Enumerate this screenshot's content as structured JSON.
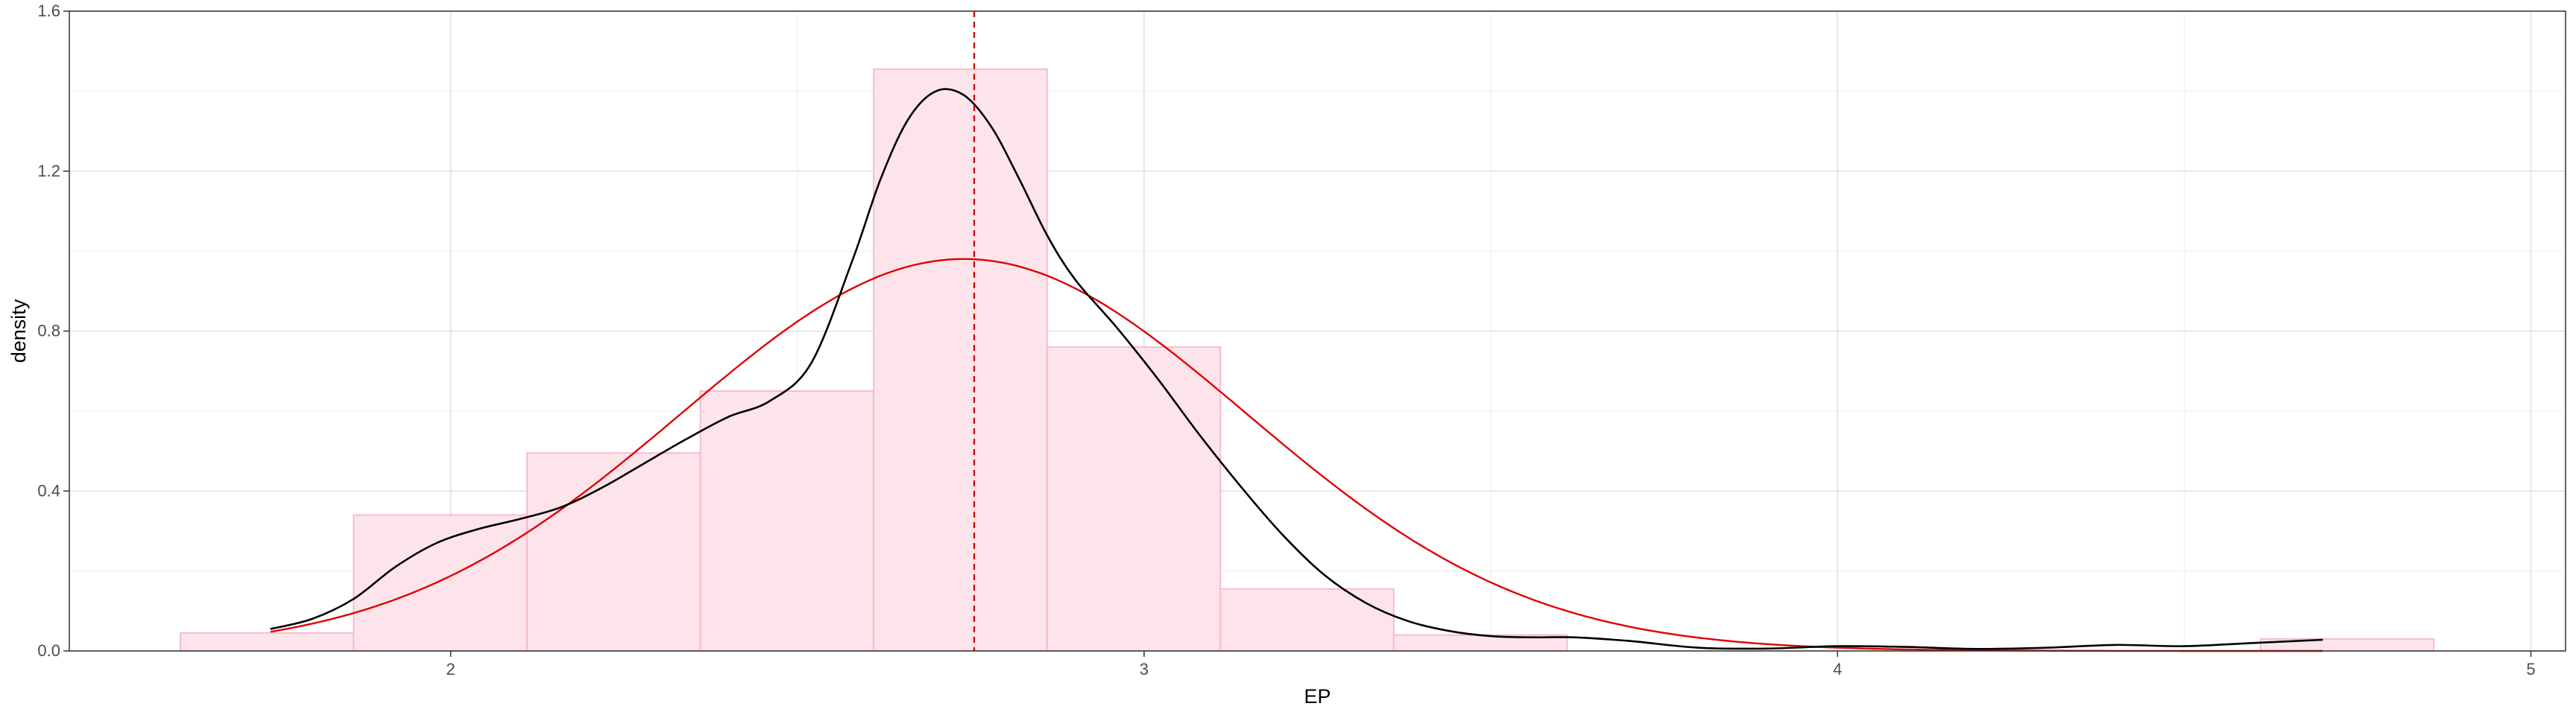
{
  "chart_data": {
    "type": "histogram",
    "xlabel": "EP",
    "ylabel": "density",
    "xlim": [
      1.45,
      5.05
    ],
    "ylim": [
      0,
      1.6
    ],
    "x_ticks": [
      2,
      3,
      4,
      5
    ],
    "x_tick_labels": [
      "2",
      "3",
      "4",
      "5"
    ],
    "y_ticks": [
      0,
      0.4,
      0.8,
      1.2,
      1.6
    ],
    "y_tick_labels": [
      "0.0",
      "0.4",
      "0.8",
      "1.2",
      "1.6"
    ],
    "grid": true,
    "legend": "none",
    "histogram": {
      "bins": [
        {
          "x0": 1.61,
          "x1": 1.86,
          "density": 0.045
        },
        {
          "x0": 1.86,
          "x1": 2.11,
          "density": 0.34
        },
        {
          "x0": 2.11,
          "x1": 2.36,
          "density": 0.495
        },
        {
          "x0": 2.36,
          "x1": 2.61,
          "density": 0.65
        },
        {
          "x0": 2.61,
          "x1": 2.86,
          "density": 1.455
        },
        {
          "x0": 2.86,
          "x1": 3.11,
          "density": 0.76
        },
        {
          "x0": 3.11,
          "x1": 3.36,
          "density": 0.155
        },
        {
          "x0": 3.36,
          "x1": 3.61,
          "density": 0.04
        },
        {
          "x0": 3.61,
          "x1": 3.86,
          "density": 0.0
        },
        {
          "x0": 3.86,
          "x1": 4.11,
          "density": 0.0
        },
        {
          "x0": 4.11,
          "x1": 4.36,
          "density": 0.0
        },
        {
          "x0": 4.36,
          "x1": 4.61,
          "density": 0.0
        },
        {
          "x0": 4.61,
          "x1": 4.86,
          "density": 0.03
        }
      ],
      "fill": "#fde4ea",
      "stroke": "#f5b8c6"
    },
    "kde_curve": {
      "color": "#000000",
      "x": [
        1.74,
        1.8,
        1.86,
        1.92,
        1.98,
        2.04,
        2.1,
        2.16,
        2.22,
        2.28,
        2.34,
        2.4,
        2.46,
        2.52,
        2.58,
        2.62,
        2.66,
        2.7,
        2.74,
        2.78,
        2.82,
        2.86,
        2.9,
        2.96,
        3.02,
        3.08,
        3.14,
        3.2,
        3.26,
        3.32,
        3.38,
        3.44,
        3.5,
        3.56,
        3.62,
        3.7,
        3.8,
        3.9,
        4.0,
        4.1,
        4.2,
        4.3,
        4.4,
        4.5,
        4.6,
        4.7
      ],
      "y": [
        0.055,
        0.08,
        0.13,
        0.21,
        0.27,
        0.305,
        0.33,
        0.36,
        0.41,
        0.47,
        0.53,
        0.585,
        0.625,
        0.72,
        0.98,
        1.18,
        1.33,
        1.4,
        1.39,
        1.31,
        1.18,
        1.04,
        0.93,
        0.81,
        0.68,
        0.54,
        0.41,
        0.29,
        0.19,
        0.12,
        0.075,
        0.05,
        0.037,
        0.034,
        0.034,
        0.025,
        0.008,
        0.006,
        0.012,
        0.01,
        0.005,
        0.008,
        0.015,
        0.012,
        0.02,
        0.028
      ]
    },
    "normal_curve": {
      "color": "#e00000",
      "mean": 2.74,
      "sd": 0.407,
      "x_range": [
        1.74,
        4.7
      ]
    },
    "mean_line": {
      "x": 2.755,
      "color": "#cc0000",
      "style": "dashed"
    }
  }
}
